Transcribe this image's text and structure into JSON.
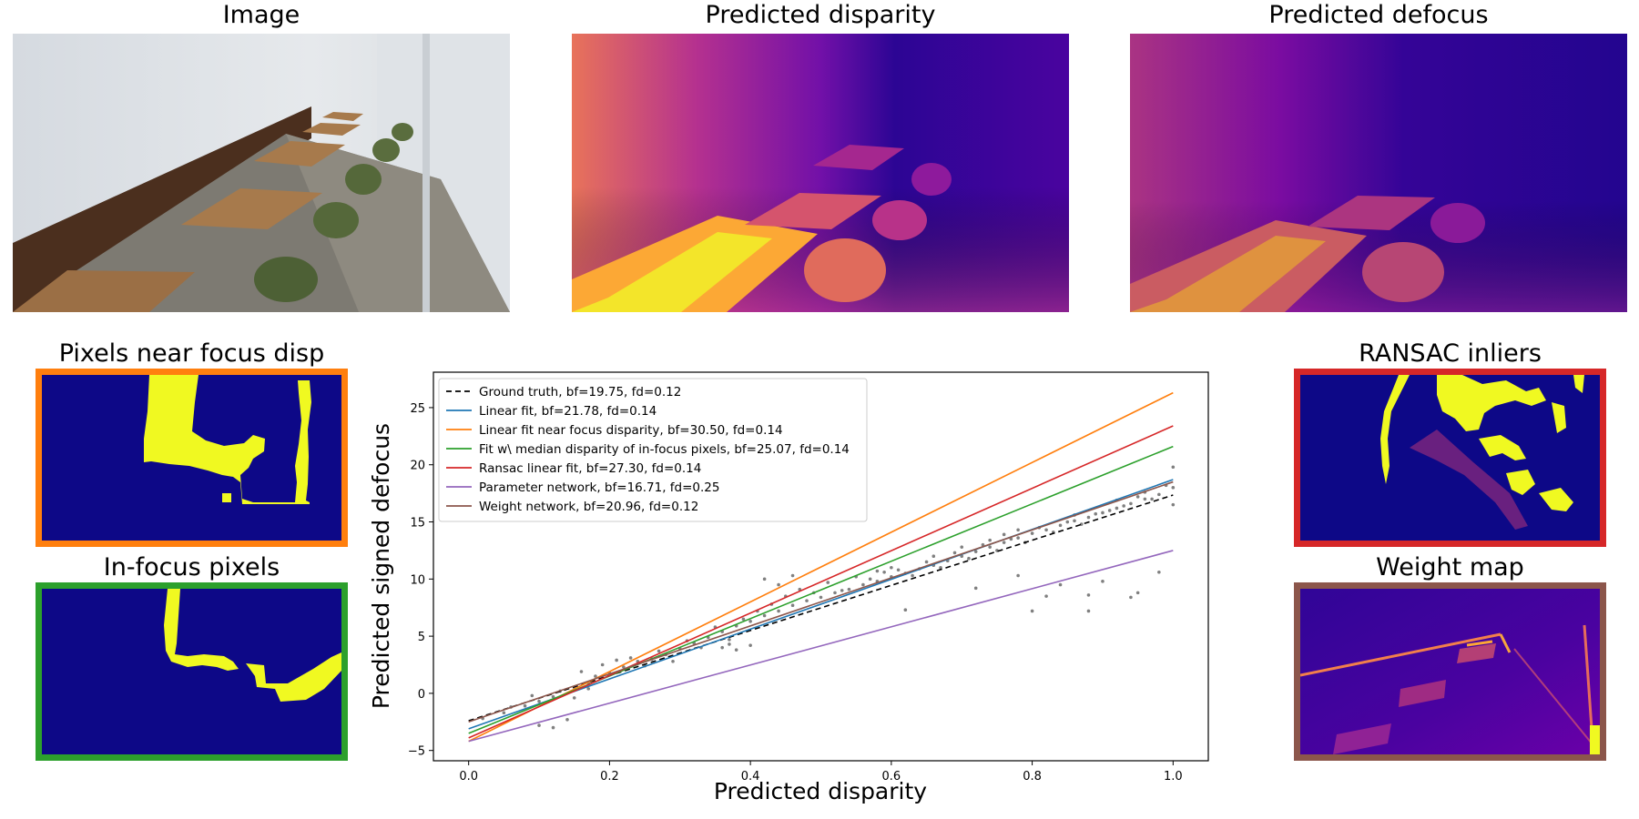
{
  "titles": {
    "image": "Image",
    "pred_disparity": "Predicted disparity",
    "pred_defocus": "Predicted defocus",
    "near_focus": "Pixels near focus disp",
    "in_focus": "In-focus pixels",
    "ransac": "RANSAC inliers",
    "weight_map": "Weight map"
  },
  "colors": {
    "near_focus_border": "#ff7f0e",
    "in_focus_border": "#2ca02c",
    "ransac_border": "#d62728",
    "weight_map_border": "#8c564b",
    "mask_background": "#0d0887",
    "mask_foreground": "#f0f921"
  },
  "chart_data": {
    "type": "scatter",
    "xlabel": "Predicted disparity",
    "ylabel": "Predicted signed defocus",
    "xlim": [
      -0.05,
      1.05
    ],
    "ylim": [
      -5.9,
      28.1
    ],
    "xticks": [
      0.0,
      0.2,
      0.4,
      0.6,
      0.8,
      1.0
    ],
    "xtick_labels": [
      "0.0",
      "0.2",
      "0.4",
      "0.6",
      "0.8",
      "1.0"
    ],
    "yticks": [
      -5,
      0,
      5,
      10,
      15,
      20,
      25
    ],
    "ytick_labels": [
      "−5",
      "0",
      "5",
      "10",
      "15",
      "20",
      "25"
    ],
    "legend_position": "upper-left",
    "grid": false,
    "series": [
      {
        "name": "Ground truth, bf=19.75, fd=0.12",
        "color": "#000000",
        "dashed": true,
        "x": [
          0.0,
          1.0
        ],
        "y": [
          -2.4,
          17.35
        ]
      },
      {
        "name": "Linear fit, bf=21.78, fd=0.14",
        "color": "#1f77b4",
        "dashed": false,
        "x": [
          0.0,
          1.0
        ],
        "y": [
          -3.1,
          18.7
        ]
      },
      {
        "name": "Linear fit near focus disparity, bf=30.50, fd=0.14",
        "color": "#ff7f0e",
        "dashed": false,
        "x": [
          0.0,
          1.0
        ],
        "y": [
          -4.2,
          26.3
        ]
      },
      {
        "name": "Fit w\\ median disparity of in-focus pixels, bf=25.07, fd=0.14",
        "color": "#2ca02c",
        "dashed": false,
        "x": [
          0.0,
          1.0
        ],
        "y": [
          -3.5,
          21.6
        ]
      },
      {
        "name": "Ransac linear fit, bf=27.30, fd=0.14",
        "color": "#d62728",
        "dashed": false,
        "x": [
          0.0,
          1.0
        ],
        "y": [
          -3.9,
          23.4
        ]
      },
      {
        "name": "Parameter network, bf=16.71, fd=0.25",
        "color": "#9467bd",
        "dashed": false,
        "x": [
          0.0,
          1.0
        ],
        "y": [
          -4.2,
          12.5
        ]
      },
      {
        "name": "Weight network, bf=20.96, fd=0.12",
        "color": "#8c564b",
        "dashed": false,
        "x": [
          0.0,
          1.0
        ],
        "y": [
          -2.5,
          18.5
        ]
      }
    ],
    "scatter": {
      "color": "#808080",
      "points": [
        [
          0.02,
          -2.2
        ],
        [
          0.05,
          -1.7
        ],
        [
          0.08,
          -1.1
        ],
        [
          0.1,
          -0.7
        ],
        [
          0.12,
          -0.3
        ],
        [
          0.13,
          0.2
        ],
        [
          0.15,
          0.5
        ],
        [
          0.17,
          0.9
        ],
        [
          0.18,
          1.5
        ],
        [
          0.2,
          1.8
        ],
        [
          0.22,
          2.3
        ],
        [
          0.24,
          2.8
        ],
        [
          0.26,
          3.0
        ],
        [
          0.28,
          3.4
        ],
        [
          0.3,
          3.9
        ],
        [
          0.32,
          4.4
        ],
        [
          0.34,
          4.9
        ],
        [
          0.36,
          5.4
        ],
        [
          0.38,
          5.9
        ],
        [
          0.4,
          6.3
        ],
        [
          0.42,
          6.8
        ],
        [
          0.44,
          7.2
        ],
        [
          0.46,
          7.7
        ],
        [
          0.48,
          8.1
        ],
        [
          0.5,
          8.4
        ],
        [
          0.52,
          8.8
        ],
        [
          0.54,
          9.1
        ],
        [
          0.56,
          9.5
        ],
        [
          0.58,
          9.8
        ],
        [
          0.6,
          10.2
        ],
        [
          0.62,
          10.5
        ],
        [
          0.64,
          10.9
        ],
        [
          0.66,
          11.2
        ],
        [
          0.68,
          11.6
        ],
        [
          0.7,
          12.0
        ],
        [
          0.72,
          12.4
        ],
        [
          0.74,
          12.8
        ],
        [
          0.76,
          13.2
        ],
        [
          0.78,
          13.6
        ],
        [
          0.8,
          14.0
        ],
        [
          0.82,
          14.3
        ],
        [
          0.84,
          14.7
        ],
        [
          0.86,
          15.1
        ],
        [
          0.88,
          15.4
        ],
        [
          0.9,
          15.8
        ],
        [
          0.92,
          16.2
        ],
        [
          0.94,
          16.6
        ],
        [
          0.96,
          17.0
        ],
        [
          0.98,
          17.4
        ],
        [
          1.0,
          18.0
        ],
        [
          1.0,
          19.8
        ],
        [
          1.0,
          16.5
        ],
        [
          0.1,
          -2.8
        ],
        [
          0.12,
          -3.0
        ],
        [
          0.14,
          -2.3
        ],
        [
          0.06,
          -1.2
        ],
        [
          0.09,
          -0.2
        ],
        [
          0.16,
          1.9
        ],
        [
          0.19,
          2.5
        ],
        [
          0.21,
          2.9
        ],
        [
          0.23,
          3.1
        ],
        [
          0.25,
          2.4
        ],
        [
          0.27,
          3.7
        ],
        [
          0.29,
          2.8
        ],
        [
          0.31,
          4.6
        ],
        [
          0.33,
          4.0
        ],
        [
          0.35,
          5.8
        ],
        [
          0.37,
          4.7
        ],
        [
          0.39,
          6.5
        ],
        [
          0.41,
          7.2
        ],
        [
          0.43,
          7.8
        ],
        [
          0.45,
          8.5
        ],
        [
          0.47,
          9.1
        ],
        [
          0.49,
          8.8
        ],
        [
          0.51,
          9.7
        ],
        [
          0.53,
          9.0
        ],
        [
          0.55,
          10.2
        ],
        [
          0.57,
          10.0
        ],
        [
          0.59,
          10.6
        ],
        [
          0.61,
          10.8
        ],
        [
          0.63,
          10.3
        ],
        [
          0.65,
          11.5
        ],
        [
          0.67,
          11.0
        ],
        [
          0.69,
          12.3
        ],
        [
          0.71,
          11.8
        ],
        [
          0.73,
          13.0
        ],
        [
          0.75,
          12.5
        ],
        [
          0.77,
          13.5
        ],
        [
          0.79,
          13.2
        ],
        [
          0.81,
          14.5
        ],
        [
          0.83,
          14.1
        ],
        [
          0.85,
          15.0
        ],
        [
          0.87,
          14.8
        ],
        [
          0.89,
          15.7
        ],
        [
          0.91,
          16.0
        ],
        [
          0.93,
          16.4
        ],
        [
          0.95,
          17.2
        ],
        [
          0.97,
          17.0
        ],
        [
          0.99,
          18.2
        ],
        [
          0.38,
          3.8
        ],
        [
          0.4,
          4.2
        ],
        [
          0.42,
          10.0
        ],
        [
          0.44,
          9.5
        ],
        [
          0.46,
          10.3
        ],
        [
          0.36,
          4.0
        ],
        [
          0.37,
          4.3
        ],
        [
          0.62,
          7.3
        ],
        [
          0.72,
          9.2
        ],
        [
          0.78,
          10.3
        ],
        [
          0.8,
          7.2
        ],
        [
          0.82,
          8.5
        ],
        [
          0.84,
          9.5
        ],
        [
          0.88,
          8.6
        ],
        [
          0.9,
          9.8
        ],
        [
          0.94,
          8.4
        ],
        [
          0.95,
          8.8
        ],
        [
          0.98,
          10.6
        ],
        [
          0.88,
          7.2
        ],
        [
          0.6,
          11.0
        ],
        [
          0.58,
          10.7
        ],
        [
          0.66,
          12.0
        ],
        [
          0.7,
          12.8
        ],
        [
          0.74,
          13.4
        ],
        [
          0.76,
          13.9
        ],
        [
          0.78,
          14.3
        ],
        [
          0.86,
          15.6
        ],
        [
          0.92,
          16.9
        ],
        [
          0.96,
          17.6
        ],
        [
          0.15,
          -0.4
        ],
        [
          0.17,
          0.4
        ]
      ]
    }
  }
}
